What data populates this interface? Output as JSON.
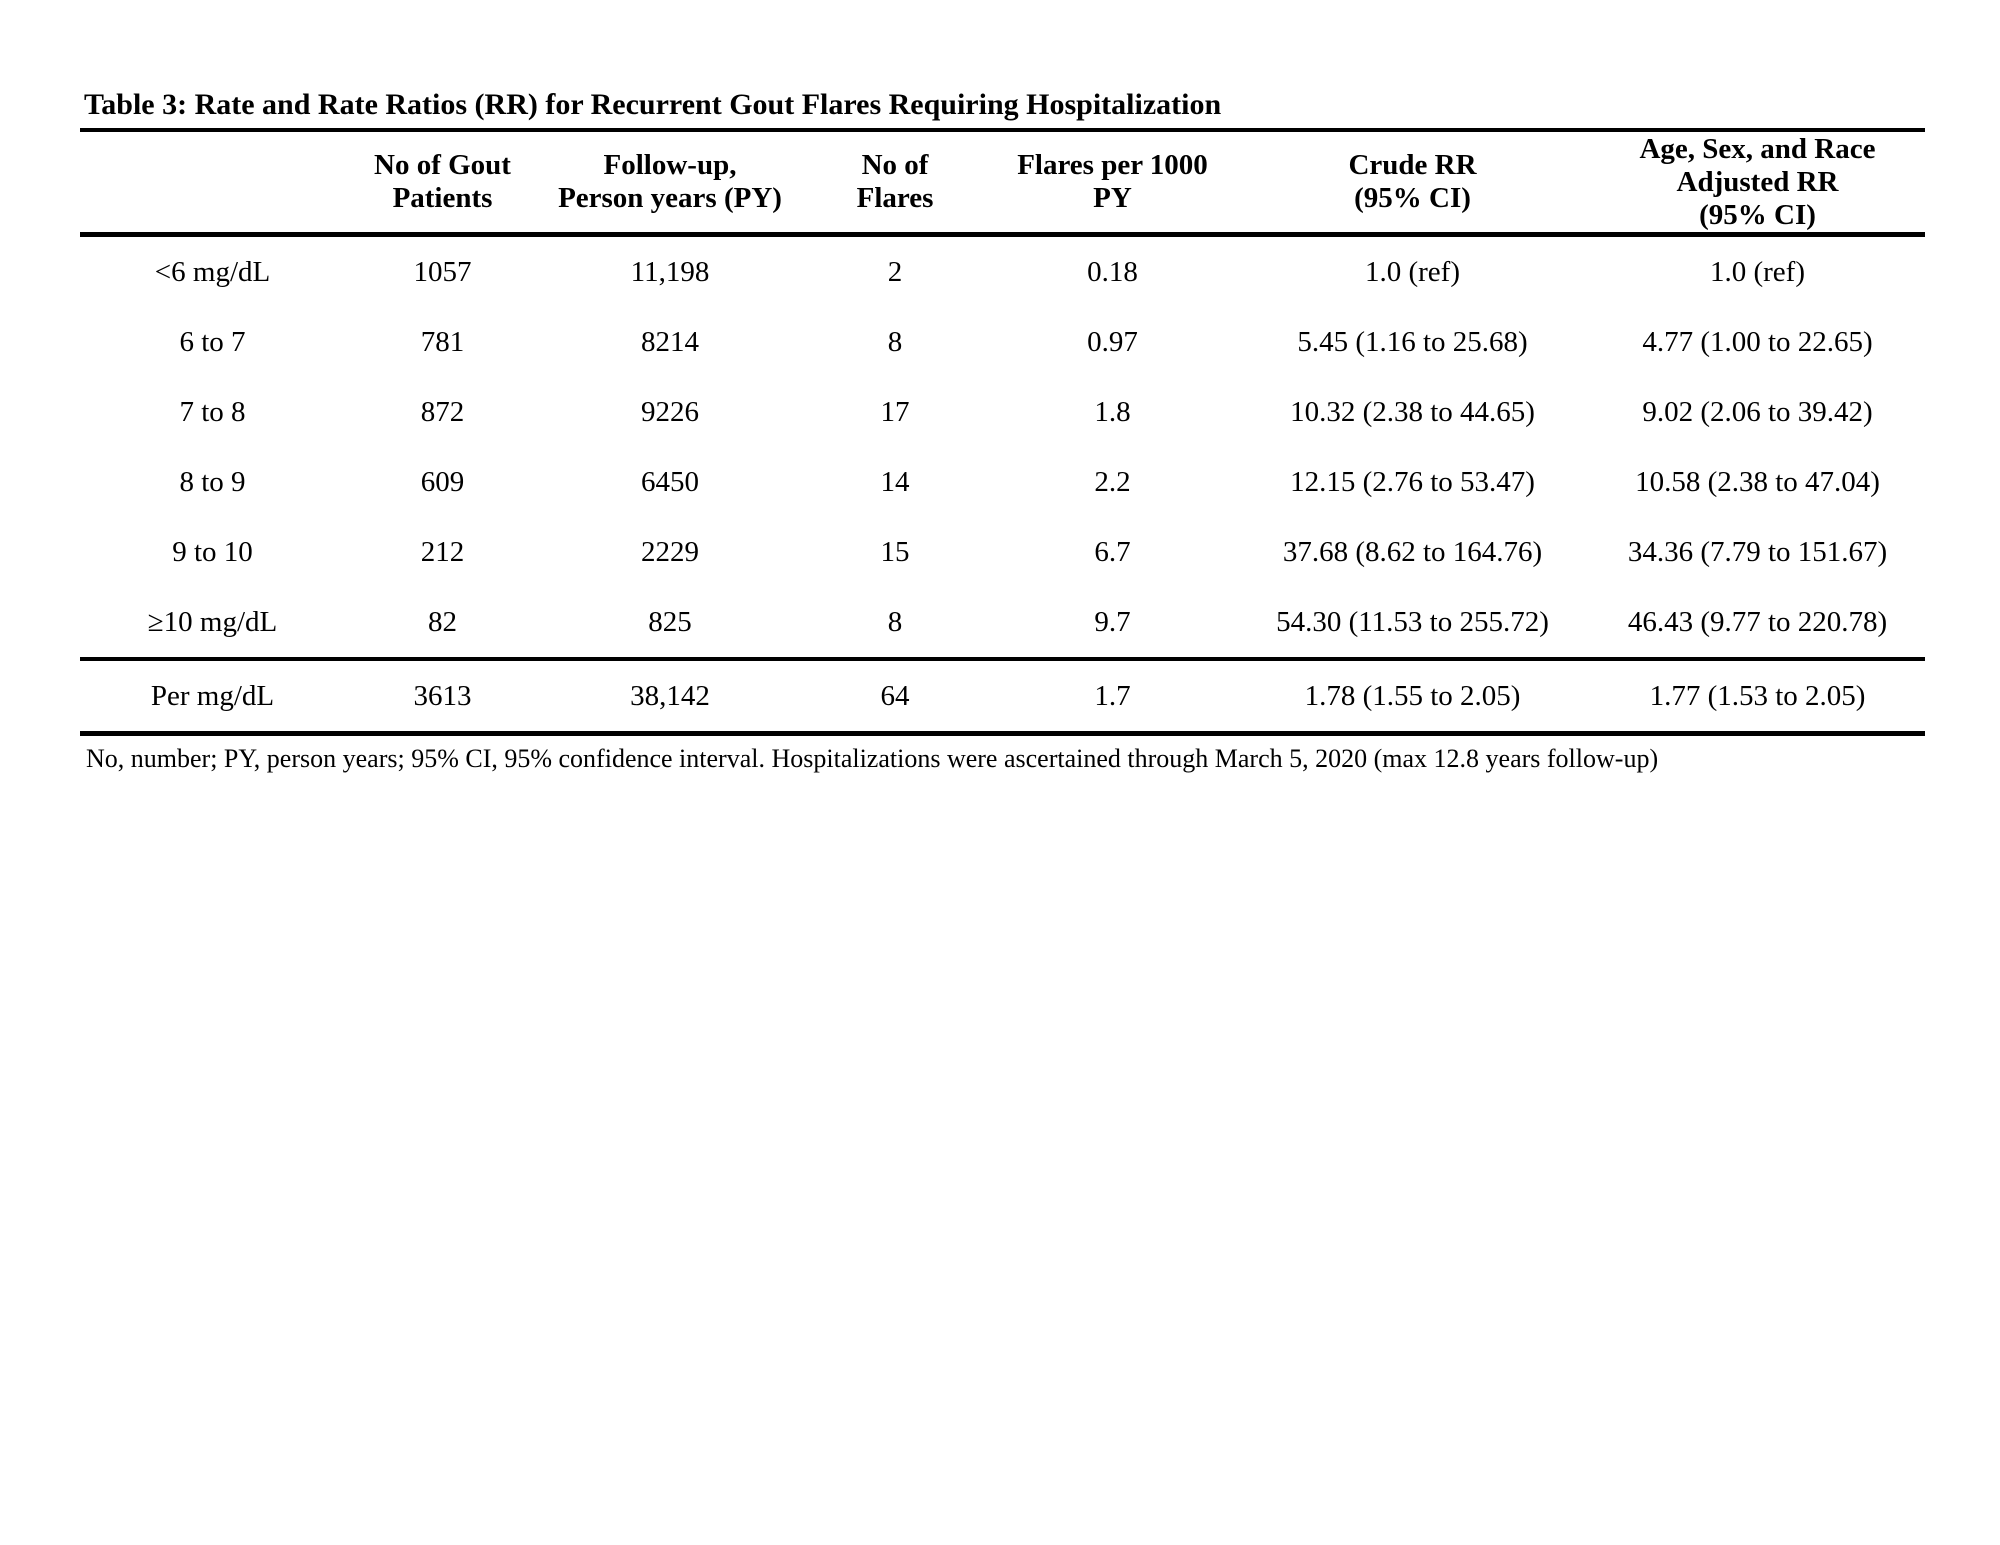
{
  "page": {
    "background": "#ffffff",
    "text_color": "#000000",
    "rule_color": "#000000"
  },
  "table": {
    "title": "Table 3: Rate and Rate Ratios (RR) for Recurrent Gout Flares Requiring Hospitalization",
    "headers": [
      "",
      "No of Gout\nPatients",
      "Follow-up,\nPerson years (PY)",
      "No of\nFlares",
      "Flares per 1000\nPY",
      "Crude RR\n(95% CI)",
      "Age, Sex, and Race\nAdjusted RR\n(95% CI)"
    ],
    "rows": [
      [
        "<6 mg/dL",
        "1057",
        "11,198",
        "2",
        "0.18",
        "1.0 (ref)",
        "1.0 (ref)"
      ],
      [
        "6 to 7",
        "781",
        "8214",
        "8",
        "0.97",
        "5.45 (1.16 to 25.68)",
        "4.77 (1.00 to 22.65)"
      ],
      [
        "7 to 8",
        "872",
        "9226",
        "17",
        "1.8",
        "10.32 (2.38 to 44.65)",
        "9.02 (2.06 to 39.42)"
      ],
      [
        "8 to 9",
        "609",
        "6450",
        "14",
        "2.2",
        "12.15 (2.76 to 53.47)",
        "10.58 (2.38 to 47.04)"
      ],
      [
        "9 to 10",
        "212",
        "2229",
        "15",
        "6.7",
        "37.68 (8.62 to 164.76)",
        "34.36 (7.79 to 151.67)"
      ],
      [
        "≥10 mg/dL",
        "82",
        "825",
        "8",
        "9.7",
        "54.30 (11.53 to 255.72)",
        "46.43 (9.77 to 220.78)"
      ]
    ],
    "summary_row": [
      "Per mg/dL",
      "3613",
      "38,142",
      "64",
      "1.7",
      "1.78 (1.55 to 2.05)",
      "1.77 (1.53 to 2.05)"
    ],
    "footnote": "No, number; PY, person years; 95% CI, 95% confidence interval. Hospitalizations were ascertained through March 5, 2020 (max 12.8 years follow-up)"
  }
}
